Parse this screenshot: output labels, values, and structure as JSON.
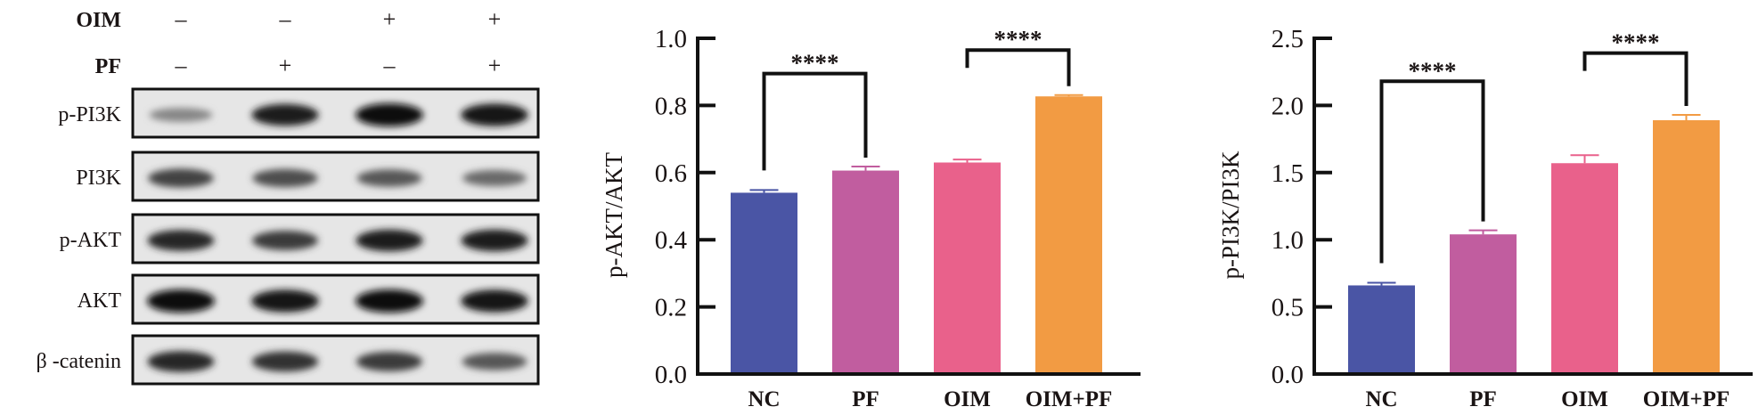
{
  "blot": {
    "conditions": [
      {
        "label": "OIM",
        "signs": [
          "–",
          "–",
          "+",
          "+"
        ]
      },
      {
        "label": "PF",
        "signs": [
          "–",
          "+",
          "–",
          "+"
        ]
      }
    ],
    "rows": [
      {
        "label": "p-PI3K",
        "intensity": [
          0.35,
          0.9,
          1.0,
          0.95
        ]
      },
      {
        "label": "PI3K",
        "intensity": [
          0.7,
          0.65,
          0.6,
          0.5
        ]
      },
      {
        "label": "p-AKT",
        "intensity": [
          0.85,
          0.75,
          0.9,
          0.9
        ]
      },
      {
        "label": "AKT",
        "intensity": [
          1.0,
          0.95,
          1.0,
          0.95
        ]
      },
      {
        "label": "β -catenin",
        "intensity": [
          0.85,
          0.8,
          0.75,
          0.6
        ]
      }
    ]
  },
  "chart_data": [
    {
      "type": "bar",
      "title": "",
      "xlabel": "",
      "ylabel": "p-AKT/AKT",
      "categories": [
        "NC",
        "PF",
        "OIM",
        "OIM+PF"
      ],
      "values": [
        0.54,
        0.606,
        0.63,
        0.827
      ],
      "errors": [
        0.008,
        0.012,
        0.009,
        0.004
      ],
      "colors": [
        "#4a55a5",
        "#c15d9f",
        "#e9618b",
        "#f29b43"
      ],
      "ylim": [
        0,
        1.0
      ],
      "yticks": [
        "0.0",
        "0.2",
        "0.4",
        "0.6",
        "0.8",
        "1.0"
      ],
      "significance": [
        {
          "from": 0,
          "to": 1,
          "label": "****",
          "level": 0.895
        },
        {
          "from": 2,
          "to": 3,
          "label": "****",
          "level": 0.965
        }
      ]
    },
    {
      "type": "bar",
      "title": "",
      "xlabel": "",
      "ylabel": "p-PI3K/PI3K",
      "categories": [
        "NC",
        "PF",
        "OIM",
        "OIM+PF"
      ],
      "values": [
        0.66,
        1.04,
        1.57,
        1.89
      ],
      "errors": [
        0.02,
        0.03,
        0.06,
        0.04
      ],
      "colors": [
        "#4a55a5",
        "#c15d9f",
        "#e9618b",
        "#f29b43"
      ],
      "ylim": [
        0,
        2.5
      ],
      "yticks": [
        "0.0",
        "0.5",
        "1.0",
        "1.5",
        "2.0",
        "2.5"
      ],
      "significance": [
        {
          "from": 0,
          "to": 1,
          "label": "****",
          "level": 2.18
        },
        {
          "from": 2,
          "to": 3,
          "label": "****",
          "level": 2.39
        }
      ]
    }
  ]
}
